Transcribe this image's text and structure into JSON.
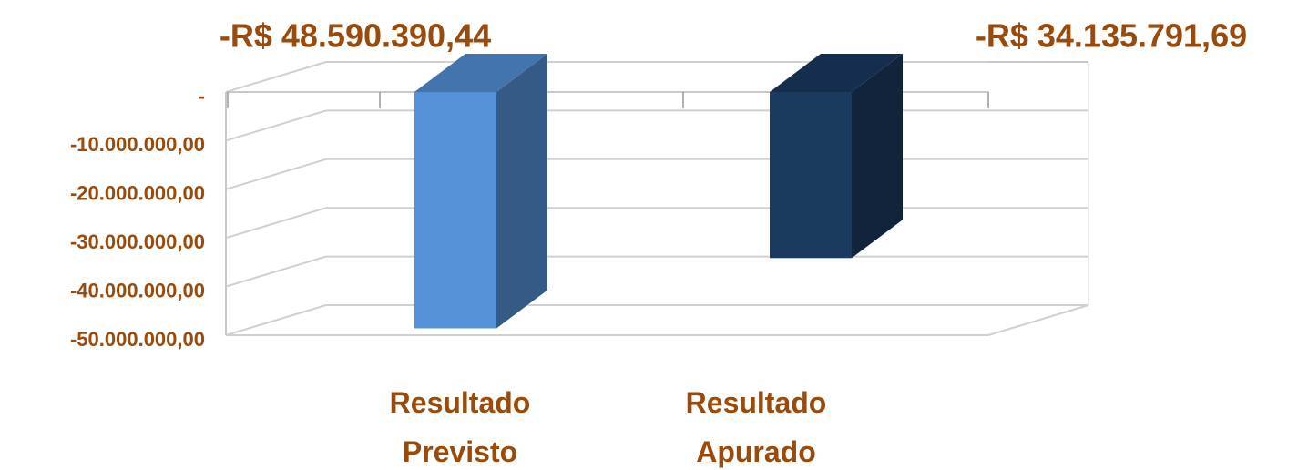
{
  "chart_data": {
    "type": "bar3d",
    "categories": [
      "Resultado Previsto",
      "Resultado Apurado"
    ],
    "series": [
      {
        "colors": [
          "#5591d8",
          "#1b3a60"
        ],
        "values": [
          -48590390.44,
          -34135791.69
        ],
        "value_labels": [
          "-R$ 48.590.390,44",
          "-R$ 34.135.791,69"
        ]
      }
    ],
    "ylim": [
      -50000000,
      0
    ],
    "yticks": [
      {
        "value": 0,
        "label": "-"
      },
      {
        "value": -10000000,
        "label": "-10.000.000,00"
      },
      {
        "value": -20000000,
        "label": "-20.000.000,00"
      },
      {
        "value": -30000000,
        "label": "-30.000.000,00"
      },
      {
        "value": -40000000,
        "label": "-40.000.000,00"
      },
      {
        "value": -50000000,
        "label": "-50.000.000,00"
      }
    ],
    "grid": true
  }
}
